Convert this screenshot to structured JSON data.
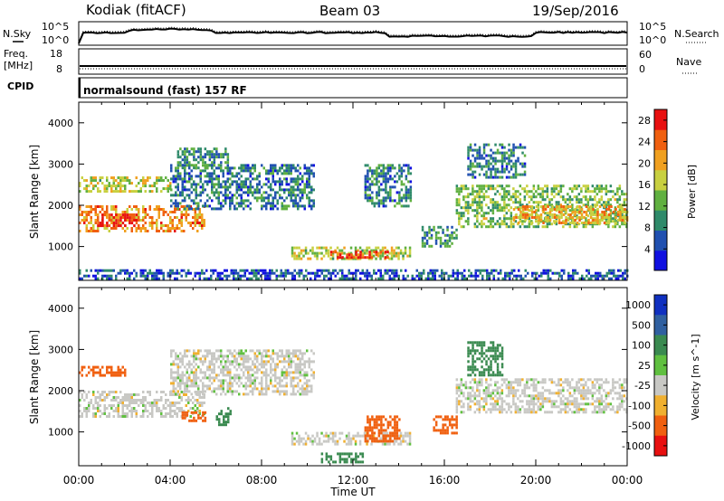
{
  "header": {
    "station": "Kodiak (fitACF)",
    "beam": "Beam 03",
    "date": "19/Sep/2016"
  },
  "strip_labels": {
    "nsky": "N.Sky",
    "freq_line1": "Freq.",
    "freq_line2": "[MHz]",
    "cpid": "CPID",
    "nsearch": "N.Search",
    "nave": "Nave",
    "cpid_value": "normalsound (fast) 157 RF"
  },
  "strip_ticks": {
    "noise_left": [
      "10^5",
      "10^0"
    ],
    "noise_right": [
      "10^5",
      "10^0"
    ],
    "freq_left": [
      "18",
      "8"
    ],
    "nave_right": [
      "60",
      "0"
    ]
  },
  "colors": {
    "noise_trace": "#000000",
    "lowdata_grey": "#c8c8c4"
  },
  "chart_data": [
    {
      "type": "heatmap",
      "panel": "power",
      "ylabel": "Slant Range [km]",
      "xlabel": "Time UT",
      "x_ticks": [
        "00:00",
        "04:00",
        "08:00",
        "12:00",
        "16:00",
        "20:00",
        "00:00"
      ],
      "xlim_hours": [
        0,
        24
      ],
      "ylim": [
        180,
        4500
      ],
      "y_ticks": [
        1000,
        2000,
        3000,
        4000
      ],
      "colorbar": {
        "label": "Power [dB]",
        "ticks": [
          "4",
          "8",
          "12",
          "16",
          "20",
          "24",
          "28"
        ],
        "range": [
          0,
          30
        ],
        "colors": [
          "#1010e0",
          "#2050b0",
          "#2f8a6a",
          "#60b040",
          "#c8d040",
          "#f0a020",
          "#f06010",
          "#e81010"
        ]
      },
      "echo_regions": [
        {
          "t_start": 0.0,
          "t_end": 5.5,
          "range_low": 1400,
          "range_high": 2000,
          "power_db": 22
        },
        {
          "t_start": 0.8,
          "t_end": 2.5,
          "range_low": 1500,
          "range_high": 1800,
          "power_db": 28
        },
        {
          "t_start": 0.0,
          "t_end": 4.0,
          "range_low": 2350,
          "range_high": 2700,
          "power_db": 16
        },
        {
          "t_start": 4.0,
          "t_end": 10.3,
          "range_low": 1900,
          "range_high": 3000,
          "power_db": 8
        },
        {
          "t_start": 4.3,
          "t_end": 6.5,
          "range_low": 2900,
          "range_high": 3400,
          "power_db": 10
        },
        {
          "t_start": 9.3,
          "t_end": 14.5,
          "range_low": 700,
          "range_high": 1000,
          "power_db": 16
        },
        {
          "t_start": 11.0,
          "t_end": 13.5,
          "range_low": 750,
          "range_high": 900,
          "power_db": 26
        },
        {
          "t_start": 12.5,
          "t_end": 14.5,
          "range_low": 2000,
          "range_high": 3000,
          "power_db": 8
        },
        {
          "t_start": 15.0,
          "t_end": 16.5,
          "range_low": 1000,
          "range_high": 1500,
          "power_db": 10
        },
        {
          "t_start": 16.5,
          "t_end": 24.0,
          "range_low": 1500,
          "range_high": 2500,
          "power_db": 14
        },
        {
          "t_start": 19.0,
          "t_end": 24.0,
          "range_low": 1600,
          "range_high": 2000,
          "power_db": 20
        },
        {
          "t_start": 17.0,
          "t_end": 19.5,
          "range_low": 2700,
          "range_high": 3500,
          "power_db": 8
        },
        {
          "t_start": 0.0,
          "t_end": 24.0,
          "range_low": 200,
          "range_high": 450,
          "power_db": 6
        }
      ]
    },
    {
      "type": "heatmap",
      "panel": "velocity",
      "ylabel": "Slant Range [km]",
      "xlabel": "Time UT",
      "x_ticks": [
        "00:00",
        "04:00",
        "08:00",
        "12:00",
        "16:00",
        "20:00",
        "00:00"
      ],
      "xlim_hours": [
        0,
        24
      ],
      "ylim": [
        180,
        4500
      ],
      "y_ticks": [
        1000,
        2000,
        3000,
        4000
      ],
      "colorbar": {
        "label": "Velocity [m s^-1]",
        "ticks": [
          "1000",
          "500",
          "100",
          "25",
          "-25",
          "-100",
          "-500",
          "-1000"
        ],
        "colors": [
          "#1030c0",
          "#3060a0",
          "#3a8a50",
          "#60c040",
          "#c8c8c4",
          "#f0b030",
          "#f06010",
          "#e81010"
        ]
      },
      "echo_regions": [
        {
          "t_start": 0.0,
          "t_end": 5.5,
          "range_low": 1400,
          "range_high": 2000,
          "velocity": 0
        },
        {
          "t_start": 4.0,
          "t_end": 10.3,
          "range_low": 1900,
          "range_high": 3000,
          "velocity": 0
        },
        {
          "t_start": 0.0,
          "t_end": 2.0,
          "range_low": 2400,
          "range_high": 2600,
          "velocity": -150
        },
        {
          "t_start": 4.5,
          "t_end": 5.5,
          "range_low": 1300,
          "range_high": 1500,
          "velocity": -300
        },
        {
          "t_start": 6.0,
          "t_end": 6.6,
          "range_low": 1200,
          "range_high": 1600,
          "velocity": 120
        },
        {
          "t_start": 9.3,
          "t_end": 14.5,
          "range_low": 700,
          "range_high": 1000,
          "velocity": 0
        },
        {
          "t_start": 12.5,
          "t_end": 14.0,
          "range_low": 800,
          "range_high": 1400,
          "velocity": -400
        },
        {
          "t_start": 10.5,
          "t_end": 12.5,
          "range_low": 250,
          "range_high": 500,
          "velocity": 150
        },
        {
          "t_start": 16.5,
          "t_end": 24.0,
          "range_low": 1500,
          "range_high": 2300,
          "velocity": 0
        },
        {
          "t_start": 17.0,
          "t_end": 18.5,
          "range_low": 2400,
          "range_high": 3200,
          "velocity": 120
        },
        {
          "t_start": 15.5,
          "t_end": 16.5,
          "range_low": 1000,
          "range_high": 1400,
          "velocity": -200
        }
      ]
    }
  ]
}
